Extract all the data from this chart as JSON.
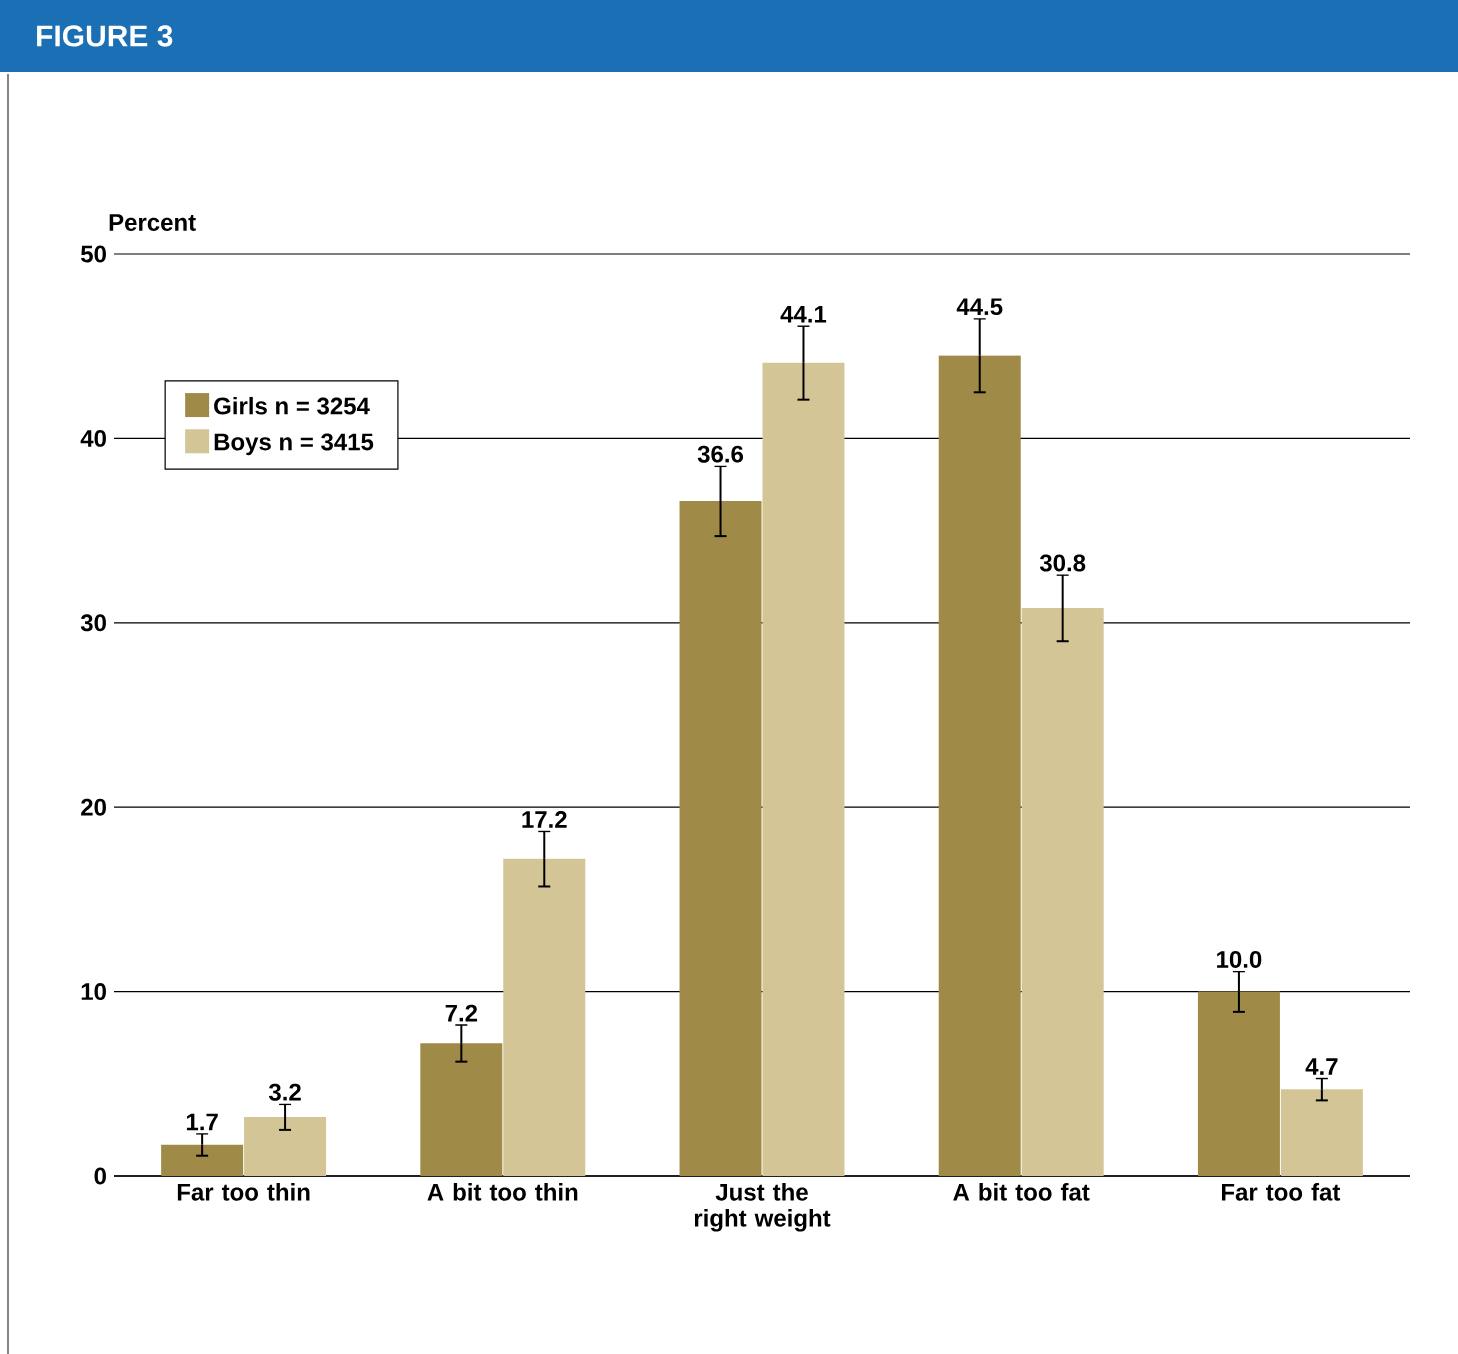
{
  "chart_data": {
    "type": "bar",
    "title": "FIGURE 3",
    "ylabel": "Percent",
    "categories": [
      "Far too thin",
      "A bit too thin",
      "Just the right weight",
      "A bit too fat",
      "Far too fat"
    ],
    "series": [
      {
        "name": "Girls n = 3254",
        "color": "#a08a48",
        "values": [
          1.7,
          7.2,
          36.6,
          44.5,
          10.0
        ],
        "value_labels": [
          "1.7",
          "7.2",
          "36.6",
          "44.5",
          "10.0"
        ],
        "errors": [
          0.6,
          1.0,
          1.9,
          2.0,
          1.1
        ]
      },
      {
        "name": "Boys n = 3415",
        "color": "#d4c596",
        "values": [
          3.2,
          17.2,
          44.1,
          30.8,
          4.7
        ],
        "value_labels": [
          "3.2",
          "17.2",
          "44.1",
          "30.8",
          "4.7"
        ],
        "errors": [
          0.7,
          1.5,
          2.0,
          1.8,
          0.6
        ]
      }
    ],
    "ylim": [
      0,
      50
    ],
    "yticks": [
      0,
      10,
      20,
      30,
      40,
      50
    ],
    "grid": "y",
    "legend": "top left"
  }
}
